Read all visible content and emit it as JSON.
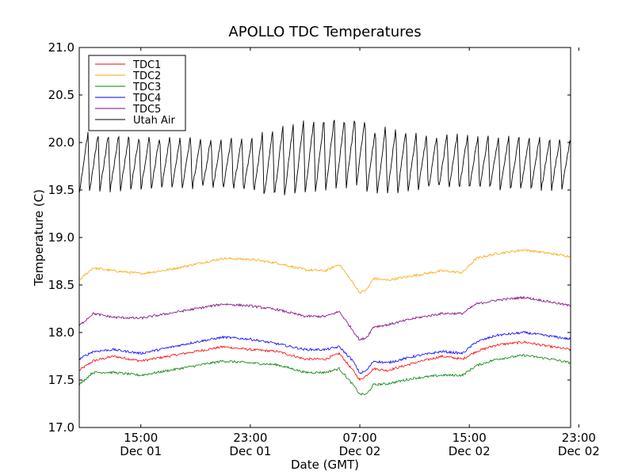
{
  "chart_data": {
    "type": "line",
    "title": "APOLLO TDC Temperatures",
    "xlabel": "Date (GMT)",
    "ylabel": "Temperature (C)",
    "xlim": [
      10.5,
      46.4
    ],
    "ylim": [
      17.0,
      21.0
    ],
    "x_units": "hours since Dec 01 00:00 GMT",
    "x_ticks": [
      {
        "x": 15,
        "time": "15:00",
        "date": "Dec 01"
      },
      {
        "x": 23,
        "time": "23:00",
        "date": "Dec 01"
      },
      {
        "x": 31,
        "time": "07:00",
        "date": "Dec 02"
      },
      {
        "x": 39,
        "time": "15:00",
        "date": "Dec 02"
      },
      {
        "x": 47,
        "time": "23:00",
        "date": "Dec 02"
      }
    ],
    "y_ticks": [
      {
        "value": 17.0,
        "label": "17.0"
      },
      {
        "value": 17.5,
        "label": "17.5"
      },
      {
        "value": 18.0,
        "label": "18.0"
      },
      {
        "value": 18.5,
        "label": "18.5"
      },
      {
        "value": 19.0,
        "label": "19.0"
      },
      {
        "value": 19.5,
        "label": "19.5"
      },
      {
        "value": 20.0,
        "label": "20.0"
      },
      {
        "value": 20.5,
        "label": "20.5"
      },
      {
        "value": 21.0,
        "label": "21.0"
      }
    ],
    "legend": "top-left",
    "series": [
      {
        "name": "TDC1",
        "color": "#ff0000",
        "x": [
          10.5,
          11.5,
          13,
          15,
          17,
          19,
          21,
          23,
          25,
          27,
          28.5,
          29.5,
          30.5,
          31,
          31.5,
          32,
          33,
          35,
          37,
          38.5,
          39.5,
          41,
          43,
          45,
          46.4
        ],
        "y": [
          17.6,
          17.7,
          17.75,
          17.7,
          17.75,
          17.8,
          17.85,
          17.82,
          17.8,
          17.72,
          17.72,
          17.78,
          17.6,
          17.5,
          17.55,
          17.62,
          17.6,
          17.68,
          17.75,
          17.72,
          17.8,
          17.87,
          17.9,
          17.85,
          17.82
        ]
      },
      {
        "name": "TDC2",
        "color": "#ffa500",
        "x": [
          10.5,
          11.5,
          13,
          15,
          17,
          19,
          21,
          23,
          25,
          27,
          28.5,
          29.5,
          30.5,
          31,
          31.5,
          32,
          33,
          35,
          37,
          38.5,
          39.5,
          41,
          43,
          45,
          46.4
        ],
        "y": [
          18.55,
          18.68,
          18.65,
          18.62,
          18.66,
          18.72,
          18.78,
          18.77,
          18.73,
          18.66,
          18.65,
          18.72,
          18.52,
          18.42,
          18.45,
          18.57,
          18.55,
          18.6,
          18.65,
          18.63,
          18.78,
          18.83,
          18.87,
          18.83,
          18.8
        ]
      },
      {
        "name": "TDC3",
        "color": "#008000",
        "x": [
          10.5,
          11.5,
          13,
          15,
          17,
          19,
          21,
          23,
          25,
          27,
          28.5,
          29.5,
          30.5,
          31,
          31.5,
          32,
          33,
          35,
          37,
          38.5,
          39.5,
          41,
          43,
          45,
          46.4
        ],
        "y": [
          17.45,
          17.58,
          17.58,
          17.55,
          17.6,
          17.65,
          17.7,
          17.68,
          17.66,
          17.58,
          17.58,
          17.62,
          17.45,
          17.35,
          17.35,
          17.45,
          17.46,
          17.52,
          17.55,
          17.55,
          17.65,
          17.72,
          17.76,
          17.72,
          17.68
        ]
      },
      {
        "name": "TDC4",
        "color": "#0000ff",
        "x": [
          10.5,
          11.5,
          13,
          15,
          17,
          19,
          21,
          23,
          25,
          27,
          28.5,
          29.5,
          30.5,
          31,
          31.5,
          32,
          33,
          35,
          37,
          38.5,
          39.5,
          41,
          43,
          45,
          46.4
        ],
        "y": [
          17.72,
          17.8,
          17.82,
          17.78,
          17.84,
          17.9,
          17.95,
          17.93,
          17.88,
          17.82,
          17.82,
          17.85,
          17.7,
          17.57,
          17.6,
          17.7,
          17.68,
          17.75,
          17.8,
          17.78,
          17.9,
          17.97,
          18.0,
          17.96,
          17.93
        ]
      },
      {
        "name": "TDC5",
        "color": "#800080",
        "x": [
          10.5,
          11.5,
          13,
          15,
          17,
          19,
          21,
          23,
          25,
          27,
          28.5,
          29.5,
          30.5,
          31,
          31.5,
          32,
          33,
          35,
          37,
          38.5,
          39.5,
          41,
          43,
          45,
          46.4
        ],
        "y": [
          18.07,
          18.2,
          18.16,
          18.15,
          18.2,
          18.25,
          18.3,
          18.28,
          18.24,
          18.17,
          18.17,
          18.22,
          18.02,
          17.92,
          17.95,
          18.06,
          18.08,
          18.15,
          18.2,
          18.2,
          18.3,
          18.34,
          18.37,
          18.32,
          18.28
        ]
      },
      {
        "name": "Utah Air",
        "color": "#000000",
        "oscillating": true,
        "x": [
          10.5,
          16,
          22,
          23,
          24,
          26,
          28,
          30,
          30.5,
          31,
          32,
          33,
          34,
          36,
          38,
          41,
          44,
          46.4
        ],
        "max_y": [
          20.1,
          20.08,
          20.05,
          20.06,
          20.12,
          20.2,
          20.25,
          20.28,
          20.25,
          20.33,
          20.15,
          20.2,
          20.15,
          20.08,
          20.1,
          20.07,
          20.06,
          20.06
        ],
        "min_y": [
          19.47,
          19.5,
          19.5,
          19.48,
          19.42,
          19.45,
          19.47,
          19.52,
          19.55,
          19.5,
          19.42,
          19.42,
          19.45,
          19.5,
          19.5,
          19.5,
          19.5,
          19.5
        ],
        "cycle_hours": 0.75
      }
    ]
  }
}
